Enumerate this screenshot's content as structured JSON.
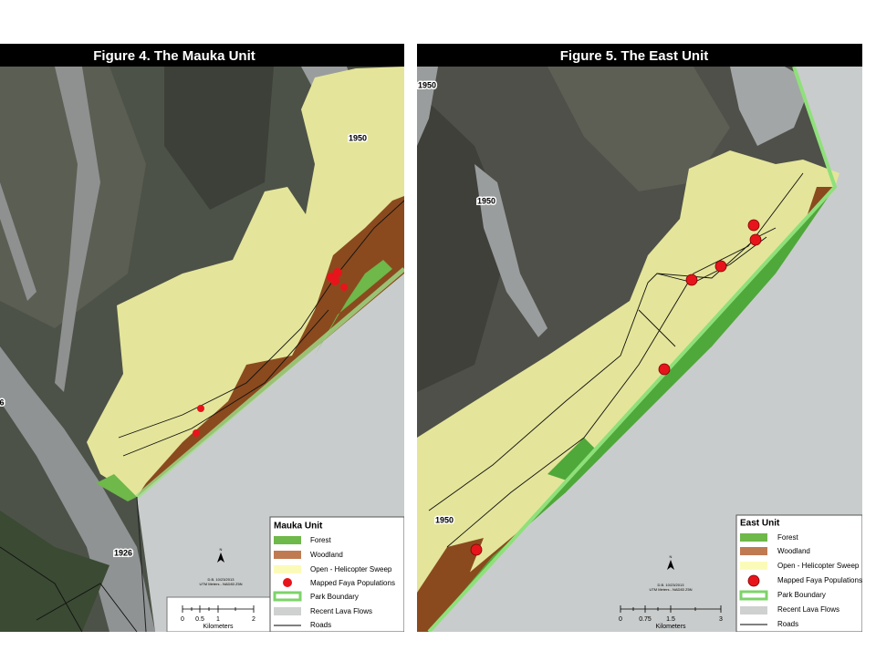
{
  "figures": [
    {
      "title": "Figure 4. The Mauka Unit",
      "lava_labels": [
        "1950",
        "1926",
        "6"
      ],
      "legend": {
        "title": "Mauka Unit",
        "items": [
          "Forest",
          "Woodland",
          "Open - Helicopter Sweep",
          "Mapped Faya Populations",
          "Park Boundary",
          "Recent Lava Flows",
          "Roads"
        ]
      },
      "north": "N",
      "credit": [
        "D.B. 10/23/2013",
        "UTM Meters - NAD83 Z5N"
      ],
      "scale": {
        "ticks": [
          "0",
          "0.5",
          "1",
          "2"
        ],
        "unit": "Kilometers"
      }
    },
    {
      "title": "Figure 5. The East Unit",
      "lava_labels": [
        "1950",
        "1950",
        "1950"
      ],
      "legend": {
        "title": "East Unit",
        "items": [
          "Forest",
          "Woodland",
          "Open - Helicopter Sweep",
          "Mapped Faya Populations",
          "Park Boundary",
          "Recent Lava Flows",
          "Roads"
        ]
      },
      "north": "N",
      "credit": [
        "D.B. 10/23/2013",
        "UTM Meters - NAD83 Z5N"
      ],
      "scale": {
        "ticks": [
          "0",
          "0.75",
          "1.5",
          "3"
        ],
        "unit": "Kilometers"
      }
    }
  ]
}
